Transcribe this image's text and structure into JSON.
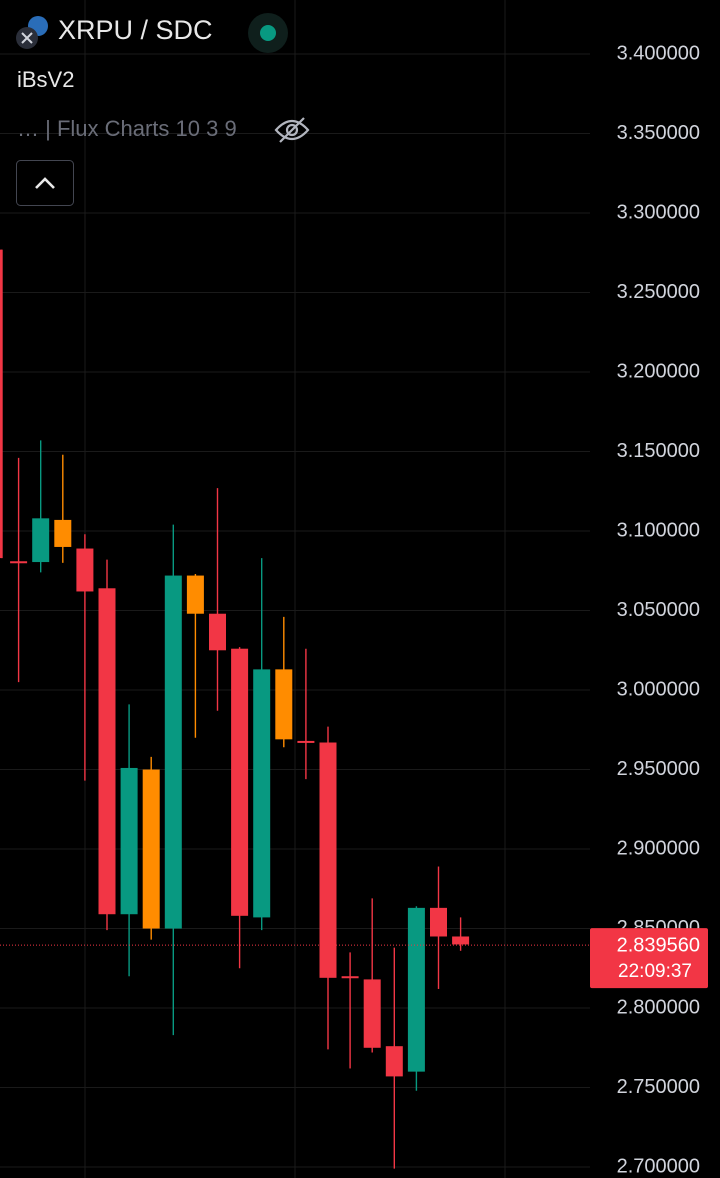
{
  "chart_data": {
    "type": "candlestick",
    "title": "XRPU / SDC",
    "subtitle": "iBsV2",
    "indicator": "… | Flux Charts 10 3 9",
    "ylim": [
      2.6931,
      3.434
    ],
    "yticks": [
      {
        "value": 3.4,
        "label": "3.400000"
      },
      {
        "value": 3.35,
        "label": "3.350000"
      },
      {
        "value": 3.3,
        "label": "3.300000"
      },
      {
        "value": 3.25,
        "label": "3.250000"
      },
      {
        "value": 3.2,
        "label": "3.200000"
      },
      {
        "value": 3.15,
        "label": "3.150000"
      },
      {
        "value": 3.1,
        "label": "3.100000"
      },
      {
        "value": 3.05,
        "label": "3.050000"
      },
      {
        "value": 3.0,
        "label": "3.000000"
      },
      {
        "value": 2.95,
        "label": "2.950000"
      },
      {
        "value": 2.9,
        "label": "2.900000"
      },
      {
        "value": 2.85,
        "label": "2.850000"
      },
      {
        "value": 2.8,
        "label": "2.800000"
      },
      {
        "value": 2.75,
        "label": "2.750000"
      },
      {
        "value": 2.7,
        "label": "2.700000"
      }
    ],
    "grid": true,
    "open": [
      3.277,
      3.081,
      3.0805,
      3.107,
      3.089,
      3.064,
      2.859,
      2.95,
      2.85,
      3.072,
      3.048,
      3.026,
      2.857,
      3.013,
      2.968,
      2.967,
      2.82,
      2.818,
      2.776,
      2.76,
      2.863,
      2.845
    ],
    "close": [
      3.083,
      3.08,
      3.108,
      3.09,
      3.062,
      2.859,
      2.951,
      2.85,
      3.072,
      3.048,
      3.025,
      2.858,
      3.013,
      2.969,
      2.967,
      2.819,
      2.819,
      2.775,
      2.757,
      2.863,
      2.845,
      2.84
    ],
    "high": [
      3.277,
      3.146,
      3.157,
      3.148,
      3.098,
      3.082,
      2.991,
      2.958,
      3.104,
      3.073,
      3.127,
      3.027,
      3.083,
      3.046,
      3.026,
      2.977,
      2.835,
      2.869,
      2.838,
      2.864,
      2.889,
      2.857
    ],
    "low": [
      3.083,
      3.005,
      3.074,
      3.08,
      2.943,
      2.849,
      2.82,
      2.843,
      2.783,
      2.97,
      2.987,
      2.825,
      2.849,
      2.964,
      2.944,
      2.774,
      2.762,
      2.772,
      2.699,
      2.748,
      2.812,
      2.836
    ],
    "colors": [
      "#f23645",
      "#f23645",
      "#089981",
      "#ff8c00",
      "#f23645",
      "#f23645",
      "#089981",
      "#ff8c00",
      "#089981",
      "#ff8c00",
      "#f23645",
      "#f23645",
      "#089981",
      "#ff8c00",
      "#f23645",
      "#f23645",
      "#f23645",
      "#f23645",
      "#f23645",
      "#089981",
      "#f23645",
      "#f23645"
    ],
    "last_price": {
      "value": 2.83956,
      "label": "2.839560"
    },
    "countdown": "22:09:37"
  }
}
